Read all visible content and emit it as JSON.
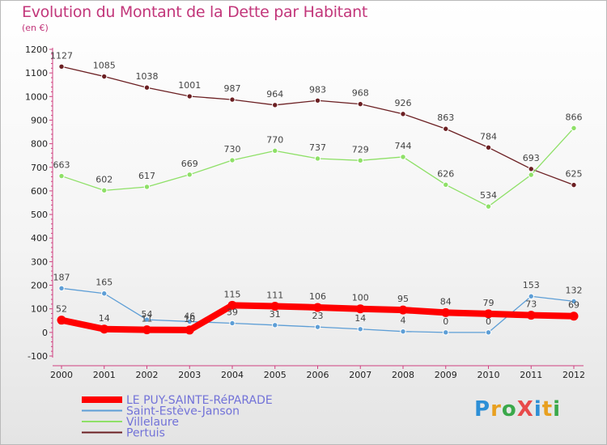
{
  "title": "Evolution du Montant de la Dette par Habitant",
  "subtitle": "(en €)",
  "logo": {
    "text": "ProXiti",
    "colors": [
      "#2d8fd6",
      "#e8a020",
      "#3aa84a",
      "#e84a4a",
      "#2d8fd6",
      "#e8a020",
      "#3aa84a"
    ]
  },
  "chart_data": {
    "type": "line",
    "x": [
      "2000",
      "2001",
      "2002",
      "2003",
      "2004",
      "2005",
      "2006",
      "2007",
      "2008",
      "2009",
      "2010",
      "2011",
      "2012"
    ],
    "ylim": [
      -100,
      1200
    ],
    "yticks": [
      "-100",
      "0",
      "100",
      "200",
      "300",
      "400",
      "500",
      "600",
      "700",
      "800",
      "900",
      "1000",
      "1100",
      "1200"
    ],
    "grid": false,
    "legend_position": "bottom-left",
    "series": [
      {
        "name": "LE PUY-SAINTE-RéPARADE",
        "color": "#ff0000",
        "values": [
          52,
          14,
          11,
          10,
          115,
          111,
          106,
          100,
          95,
          84,
          79,
          73,
          69
        ],
        "labels": [
          "52",
          "14",
          "11",
          "10",
          "115",
          "111",
          "106",
          "100",
          "95",
          "84",
          "79",
          "73",
          "69"
        ]
      },
      {
        "name": "Saint-Estève-Janson",
        "color": "#5d9ed6",
        "values": [
          187,
          165,
          54,
          46,
          39,
          31,
          23,
          14,
          4,
          0,
          0,
          153,
          132
        ],
        "labels": [
          "187",
          "165",
          "54",
          "46",
          "39",
          "31",
          "23",
          "14",
          "4",
          "0",
          "0",
          "153",
          "132"
        ]
      },
      {
        "name": "Villelaure",
        "color": "#8ee067",
        "values": [
          663,
          602,
          617,
          669,
          730,
          770,
          737,
          729,
          744,
          626,
          534,
          668,
          866
        ],
        "labels": [
          "663",
          "602",
          "617",
          "669",
          "730",
          "770",
          "737",
          "729",
          "744",
          "626",
          "534",
          "",
          "866"
        ]
      },
      {
        "name": "Pertuis",
        "color": "#6b1f22",
        "values": [
          1127,
          1085,
          1038,
          1001,
          987,
          964,
          983,
          968,
          926,
          863,
          784,
          693,
          625
        ],
        "labels": [
          "1127",
          "1085",
          "1038",
          "1001",
          "987",
          "964",
          "983",
          "968",
          "926",
          "863",
          "784",
          "693",
          "625"
        ]
      }
    ]
  }
}
